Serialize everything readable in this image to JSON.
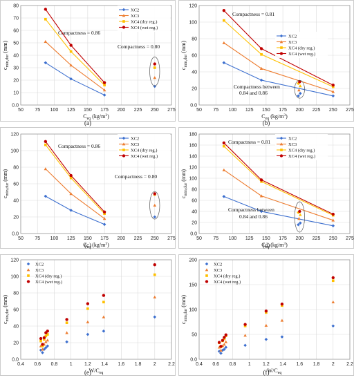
{
  "colors": {
    "XC2": "#3c6fcf",
    "XC3": "#ed7d31",
    "XC4d": "#ffc000",
    "XC4w": "#c00000"
  },
  "chart_data": [
    {
      "id": "a",
      "type": "line",
      "panel_label": "(a)",
      "xlabel": "C_eq (kg/m³)",
      "ylabel": "c_min,dur (mm)",
      "xlim": [
        50,
        275
      ],
      "ylim": [
        0,
        80
      ],
      "xticks": [
        50,
        75,
        100,
        125,
        150,
        175,
        200,
        225,
        250,
        275
      ],
      "yticks": [
        0,
        10,
        20,
        30,
        40,
        50,
        60,
        70,
        80
      ],
      "x": [
        87,
        125,
        175
      ],
      "series": [
        {
          "name": "XC2",
          "values": [
            34,
            21,
            8
          ]
        },
        {
          "name": "XC3",
          "values": [
            51,
            32,
            12
          ]
        },
        {
          "name": "XC4 (dry reg.)",
          "values": [
            69,
            43,
            16
          ]
        },
        {
          "name": "XC4 (wet reg.)",
          "values": [
            77,
            48,
            18
          ]
        }
      ],
      "isolated": {
        "x": 250,
        "values": [
          15,
          22,
          30,
          33
        ]
      },
      "annotations": [
        "Compactness = 0.86",
        "Compactness = 0.80"
      ],
      "legend": "top-right"
    },
    {
      "id": "b",
      "type": "line",
      "panel_label": "(b)",
      "xlabel": "C_eq (kg/m³)",
      "ylabel": "c_min,dur (mm)",
      "xlim": [
        50,
        275
      ],
      "ylim": [
        0,
        120
      ],
      "xticks": [
        50,
        75,
        100,
        125,
        150,
        175,
        200,
        225,
        250,
        275
      ],
      "yticks": [
        0,
        20,
        40,
        60,
        80,
        100,
        120
      ],
      "x": [
        87,
        143,
        250
      ],
      "series": [
        {
          "name": "XC2",
          "values": [
            51,
            30,
            11
          ]
        },
        {
          "name": "XC3",
          "values": [
            75,
            44,
            16
          ]
        },
        {
          "name": "XC4 (dry reg.)",
          "values": [
            102,
            61,
            22
          ]
        },
        {
          "name": "XC4 (wet reg.)",
          "values": [
            114,
            68,
            24
          ]
        }
      ],
      "isolated": {
        "points": [
          [
            198,
            11
          ],
          [
            201,
            14
          ],
          [
            199,
            18
          ],
          [
            201,
            23
          ],
          [
            198,
            26
          ],
          [
            200,
            28
          ]
        ]
      },
      "annotations": [
        "Compactness = 0.81",
        "Compactness between",
        "0.84 and 0.86"
      ],
      "legend": "bottom-right"
    },
    {
      "id": "c",
      "type": "line",
      "panel_label": "(c)",
      "xlabel": "C_eq (kg/m³)",
      "ylabel": "c_min,dur (mm)",
      "xlim": [
        50,
        275
      ],
      "ylim": [
        0,
        120
      ],
      "xticks": [
        50,
        75,
        100,
        125,
        150,
        175,
        200,
        225,
        250,
        275
      ],
      "yticks": [
        0,
        20,
        40,
        60,
        80,
        100,
        120
      ],
      "x": [
        87,
        125,
        175
      ],
      "series": [
        {
          "name": "XC2",
          "values": [
            45,
            28,
            11
          ]
        },
        {
          "name": "XC3",
          "values": [
            78,
            48,
            18
          ]
        },
        {
          "name": "XC4 (dry reg.)",
          "values": [
            107,
            67,
            24
          ]
        },
        {
          "name": "XC4 (wet reg.)",
          "values": [
            111,
            70,
            26
          ]
        }
      ],
      "isolated": {
        "x": 250,
        "values": [
          20,
          34,
          47,
          48
        ]
      },
      "annotations": [
        "Compactness = 0.86",
        "Compactness = 0.80"
      ],
      "legend": "top-right"
    },
    {
      "id": "d",
      "type": "line",
      "panel_label": "(d)",
      "xlabel": "C_eq (kg/m³)",
      "ylabel": "c_min,dur (mm)",
      "xlim": [
        50,
        275
      ],
      "ylim": [
        0,
        180
      ],
      "xticks": [
        50,
        75,
        100,
        125,
        150,
        175,
        200,
        225,
        250,
        275
      ],
      "yticks": [
        0,
        20,
        40,
        60,
        80,
        100,
        120,
        140,
        160,
        180
      ],
      "x": [
        87,
        143,
        250
      ],
      "series": [
        {
          "name": "XC2",
          "values": [
            67,
            40,
            14
          ]
        },
        {
          "name": "XC3",
          "values": [
            115,
            68,
            24
          ]
        },
        {
          "name": "XC4 (dry reg.)",
          "values": [
            158,
            94,
            33
          ]
        },
        {
          "name": "XC4 (wet reg.)",
          "values": [
            164,
            97,
            35
          ]
        }
      ],
      "isolated": {
        "points": [
          [
            198,
            16
          ],
          [
            201,
            19
          ],
          [
            199,
            27
          ],
          [
            201,
            34
          ],
          [
            198,
            38
          ],
          [
            200,
            40
          ]
        ]
      },
      "annotations": [
        "Compactness = 0.81",
        "Compactness between",
        "0.84 and 0.86"
      ],
      "legend": "top-right"
    },
    {
      "id": "e",
      "type": "scatter",
      "panel_label": "(e)",
      "xlabel": "W/C_eq",
      "ylabel": "c_min,dur (mm)",
      "xlim": [
        0.4,
        2.2
      ],
      "ylim": [
        0,
        120
      ],
      "xticks": [
        0.4,
        0.6,
        0.8,
        1.0,
        1.2,
        1.4,
        1.6,
        1.8,
        2.0,
        2.2
      ],
      "yticks": [
        0,
        20,
        40,
        60,
        80,
        100,
        120
      ],
      "x": [
        0.64,
        0.66,
        0.68,
        0.7,
        0.72,
        0.95,
        1.2,
        1.39,
        2.0
      ],
      "series": [
        {
          "name": "XC2",
          "values": [
            11,
            8,
            12,
            14,
            16,
            21,
            30,
            34,
            51
          ]
        },
        {
          "name": "XC3",
          "values": [
            16,
            12,
            18,
            21,
            23,
            32,
            45,
            51,
            75
          ]
        },
        {
          "name": "XC4 (dry reg.)",
          "values": [
            22,
            16,
            24,
            28,
            30,
            44,
            61,
            69,
            102
          ]
        },
        {
          "name": "XC4 (wet reg.)",
          "values": [
            25,
            18,
            26,
            32,
            34,
            48,
            67,
            77,
            114
          ]
        }
      ],
      "legend": "top-left"
    },
    {
      "id": "f",
      "type": "scatter",
      "panel_label": "(f)",
      "xlabel": "W/C_eq",
      "ylabel": "c_min,dur (mm)",
      "xlim": [
        0.4,
        2.2
      ],
      "ylim": [
        0,
        200
      ],
      "xticks": [
        0.4,
        0.6,
        0.8,
        1.0,
        1.2,
        1.4,
        1.6,
        1.8,
        2.0,
        2.2
      ],
      "yticks": [
        0,
        50,
        100,
        150,
        200
      ],
      "x": [
        0.64,
        0.66,
        0.68,
        0.7,
        0.72,
        0.95,
        1.2,
        1.39,
        2.0
      ],
      "series": [
        {
          "name": "XC2",
          "values": [
            16,
            12,
            18,
            20,
            24,
            28,
            40,
            45,
            67
          ]
        },
        {
          "name": "XC3",
          "values": [
            24,
            18,
            27,
            30,
            35,
            48,
            68,
            78,
            115
          ]
        },
        {
          "name": "XC4 (dry reg.)",
          "values": [
            33,
            25,
            37,
            41,
            47,
            67,
            94,
            108,
            158
          ]
        },
        {
          "name": "XC4 (wet reg.)",
          "values": [
            34,
            26,
            38,
            44,
            49,
            70,
            97,
            111,
            164
          ]
        }
      ],
      "legend": "top-left"
    }
  ]
}
